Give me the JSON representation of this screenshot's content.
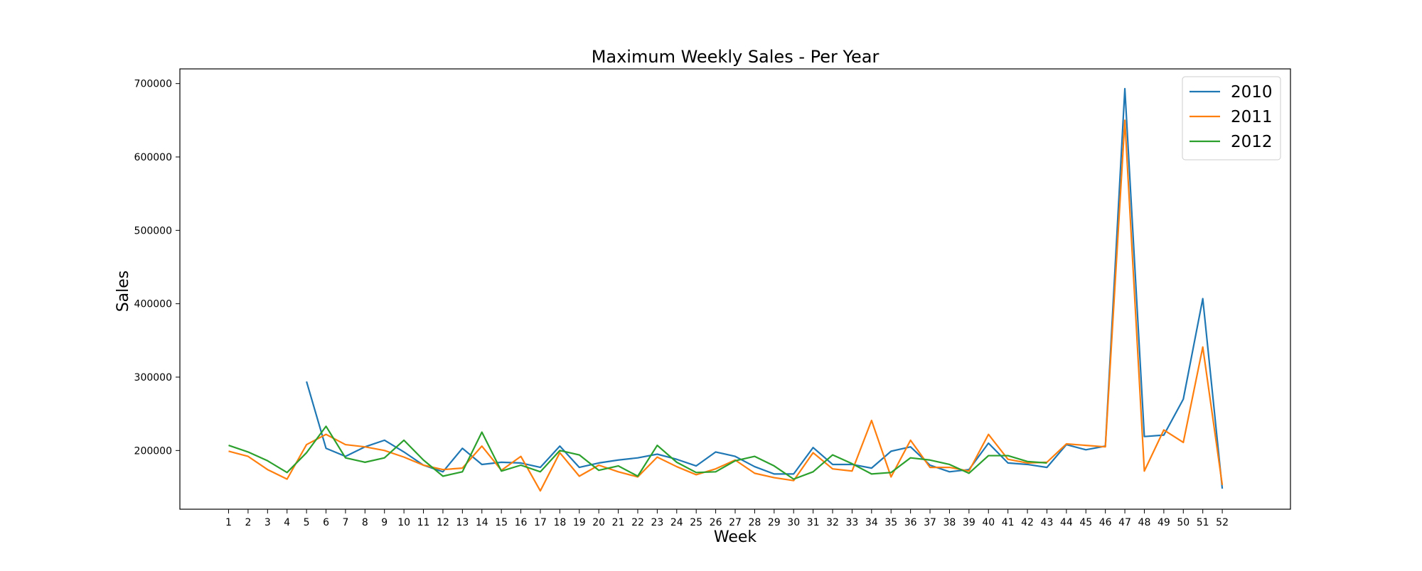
{
  "chart_data": {
    "type": "line",
    "title": "Maximum Weekly Sales - Per Year",
    "xlabel": "Week",
    "ylabel": "Sales",
    "ylim": [
      120000,
      720000
    ],
    "xlim": [
      -1.5,
      55.5
    ],
    "x": [
      1,
      2,
      3,
      4,
      5,
      6,
      7,
      8,
      9,
      10,
      11,
      12,
      13,
      14,
      15,
      16,
      17,
      18,
      19,
      20,
      21,
      22,
      23,
      24,
      25,
      26,
      27,
      28,
      29,
      30,
      31,
      32,
      33,
      34,
      35,
      36,
      37,
      38,
      39,
      40,
      41,
      42,
      43,
      44,
      45,
      46,
      47,
      48,
      49,
      50,
      51,
      52
    ],
    "yticks": [
      200000,
      300000,
      400000,
      500000,
      600000,
      700000
    ],
    "legend_position": "top-right",
    "grid": false,
    "series": [
      {
        "name": "2010",
        "color": "#1f77b4",
        "values": [
          null,
          null,
          null,
          null,
          294000,
          203000,
          192000,
          205000,
          214000,
          198000,
          180000,
          171000,
          203000,
          181000,
          184000,
          183000,
          177000,
          206000,
          177000,
          183000,
          187000,
          190000,
          195000,
          188000,
          179000,
          198000,
          192000,
          178000,
          168000,
          168000,
          204000,
          181000,
          181000,
          176000,
          199000,
          205000,
          180000,
          171000,
          174000,
          210000,
          183000,
          181000,
          177000,
          208000,
          201000,
          206000,
          693000,
          219000,
          221000,
          270000,
          407000,
          148000
        ]
      },
      {
        "name": "2011",
        "color": "#ff7f0e",
        "values": [
          199000,
          192000,
          174000,
          161000,
          208000,
          222000,
          208000,
          205000,
          200000,
          191000,
          180000,
          174000,
          176000,
          206000,
          173000,
          192000,
          145000,
          197000,
          165000,
          180000,
          171000,
          164000,
          191000,
          178000,
          167000,
          175000,
          187000,
          169000,
          163000,
          159000,
          197000,
          175000,
          172000,
          241000,
          164000,
          214000,
          177000,
          177000,
          172000,
          222000,
          188000,
          183000,
          184000,
          209000,
          207000,
          205000,
          650000,
          172000,
          228000,
          211000,
          341000,
          153000
        ]
      },
      {
        "name": "2012",
        "color": "#2ca02c",
        "values": [
          207000,
          198000,
          186000,
          170000,
          197000,
          233000,
          190000,
          184000,
          190000,
          214000,
          187000,
          165000,
          171000,
          225000,
          172000,
          180000,
          171000,
          200000,
          194000,
          173000,
          179000,
          165000,
          207000,
          184000,
          170000,
          171000,
          186000,
          192000,
          179000,
          161000,
          171000,
          194000,
          182000,
          168000,
          170000,
          190000,
          187000,
          181000,
          169000,
          193000,
          193000,
          185000,
          183000,
          null,
          null,
          null,
          null,
          null,
          null,
          null,
          null,
          null
        ]
      }
    ]
  }
}
